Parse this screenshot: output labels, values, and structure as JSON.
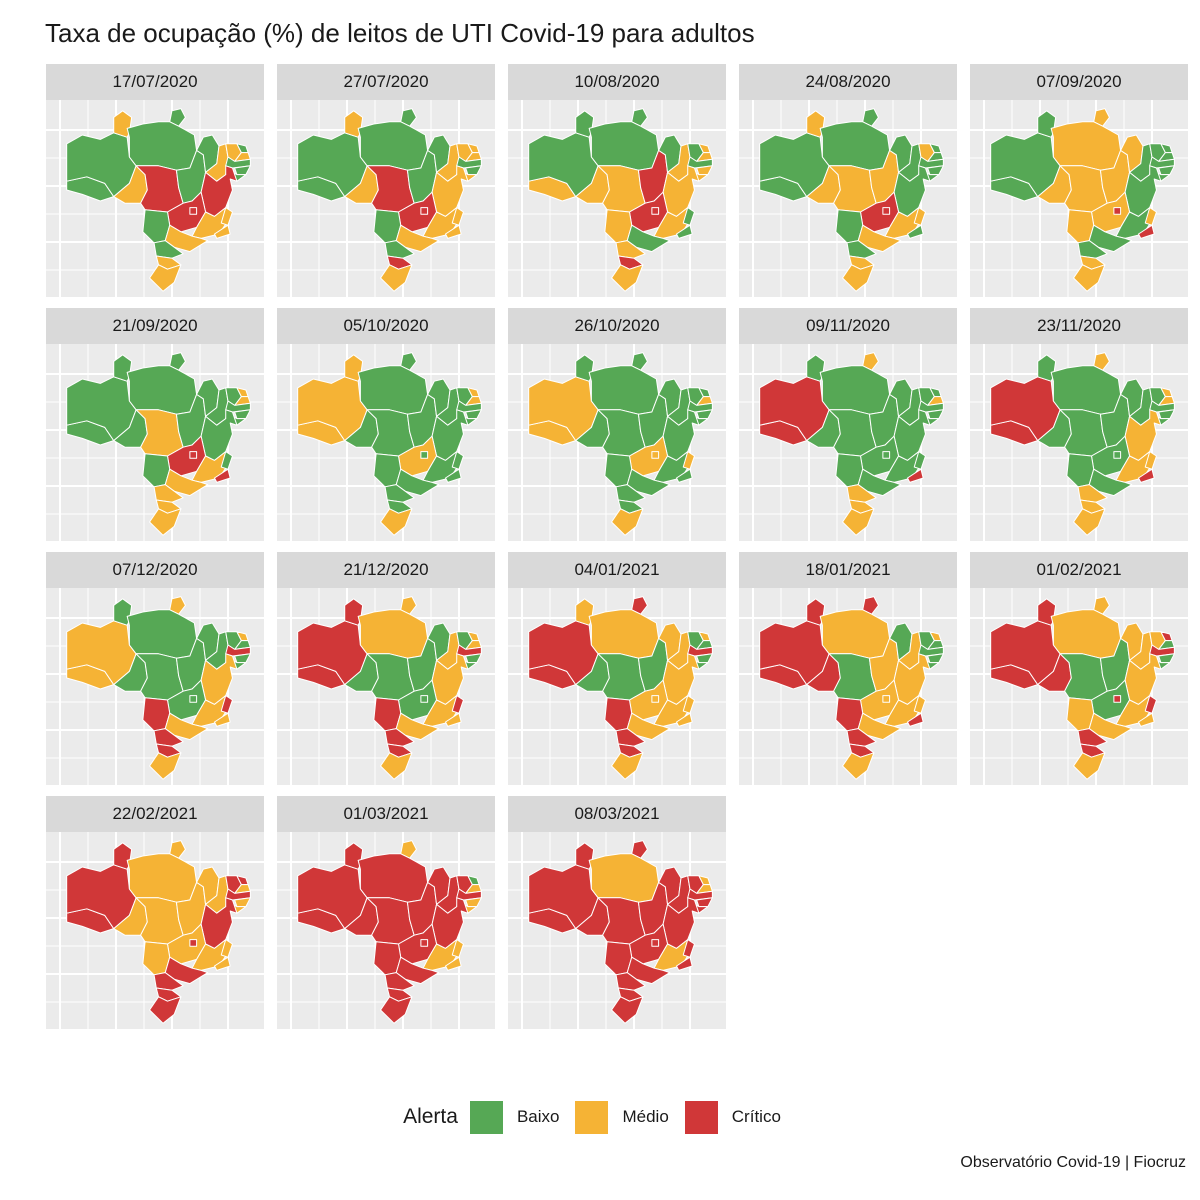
{
  "title": "Taxa de ocupação (%) de leitos de UTI Covid-19 para adultos",
  "caption": "Observatório Covid-19 | Fiocruz",
  "legend": {
    "title": "Alerta",
    "items": [
      {
        "key": "B",
        "label": "Baixo",
        "color": "#56a855"
      },
      {
        "key": "M",
        "label": "Médio",
        "color": "#f5b335"
      },
      {
        "key": "C",
        "label": "Crítico",
        "color": "#d03738"
      }
    ]
  },
  "state_order": [
    "AC",
    "AM",
    "RR",
    "AP",
    "PA",
    "RO",
    "MT",
    "TO",
    "MA",
    "PI",
    "CE",
    "RN",
    "PB",
    "PE",
    "AL",
    "SE",
    "BA",
    "GO",
    "DF",
    "MS",
    "MG",
    "ES",
    "RJ",
    "SP",
    "PR",
    "SC",
    "RS"
  ],
  "panels": [
    {
      "date": "17/07/2020",
      "alert": {
        "AC": "B",
        "AM": "B",
        "RR": "M",
        "AP": "B",
        "PA": "B",
        "RO": "M",
        "MT": "C",
        "TO": "B",
        "MA": "B",
        "PI": "M",
        "CE": "M",
        "RN": "B",
        "PB": "M",
        "PE": "B",
        "AL": "B",
        "SE": "B",
        "BA": "C",
        "GO": "C",
        "DF": "C",
        "MS": "B",
        "MG": "M",
        "ES": "M",
        "RJ": "M",
        "SP": "M",
        "PR": "B",
        "SC": "M",
        "RS": "M"
      }
    },
    {
      "date": "27/07/2020",
      "alert": {
        "AC": "B",
        "AM": "B",
        "RR": "M",
        "AP": "B",
        "PA": "B",
        "RO": "M",
        "MT": "C",
        "TO": "B",
        "MA": "B",
        "PI": "M",
        "CE": "M",
        "RN": "M",
        "PB": "M",
        "PE": "B",
        "AL": "B",
        "SE": "M",
        "BA": "M",
        "GO": "C",
        "DF": "C",
        "MS": "B",
        "MG": "M",
        "ES": "M",
        "RJ": "M",
        "SP": "M",
        "PR": "B",
        "SC": "C",
        "RS": "M"
      }
    },
    {
      "date": "10/08/2020",
      "alert": {
        "AC": "M",
        "AM": "B",
        "RR": "B",
        "AP": "B",
        "PA": "B",
        "RO": "M",
        "MT": "M",
        "TO": "C",
        "MA": "B",
        "PI": "M",
        "CE": "B",
        "RN": "M",
        "PB": "M",
        "PE": "B",
        "AL": "M",
        "SE": "M",
        "BA": "M",
        "GO": "C",
        "DF": "C",
        "MS": "M",
        "MG": "M",
        "ES": "B",
        "RJ": "B",
        "SP": "B",
        "PR": "M",
        "SC": "C",
        "RS": "M"
      }
    },
    {
      "date": "24/08/2020",
      "alert": {
        "AC": "B",
        "AM": "B",
        "RR": "M",
        "AP": "B",
        "PA": "B",
        "RO": "M",
        "MT": "M",
        "TO": "M",
        "MA": "B",
        "PI": "B",
        "CE": "M",
        "RN": "B",
        "PB": "B",
        "PE": "B",
        "AL": "B",
        "SE": "B",
        "BA": "B",
        "GO": "C",
        "DF": "C",
        "MS": "B",
        "MG": "M",
        "ES": "M",
        "RJ": "B",
        "SP": "M",
        "PR": "B",
        "SC": "M",
        "RS": "M"
      }
    },
    {
      "date": "07/09/2020",
      "alert": {
        "AC": "B",
        "AM": "B",
        "RR": "B",
        "AP": "M",
        "PA": "M",
        "RO": "M",
        "MT": "M",
        "TO": "M",
        "MA": "M",
        "PI": "B",
        "CE": "B",
        "RN": "B",
        "PB": "B",
        "PE": "B",
        "AL": "B",
        "SE": "B",
        "BA": "B",
        "GO": "M",
        "DF": "C",
        "MS": "M",
        "MG": "B",
        "ES": "M",
        "RJ": "C",
        "SP": "B",
        "PR": "B",
        "SC": "M",
        "RS": "M"
      }
    },
    {
      "date": "21/09/2020",
      "alert": {
        "AC": "B",
        "AM": "B",
        "RR": "B",
        "AP": "B",
        "PA": "B",
        "RO": "B",
        "MT": "M",
        "TO": "B",
        "MA": "B",
        "PI": "B",
        "CE": "B",
        "RN": "M",
        "PB": "M",
        "PE": "B",
        "AL": "B",
        "SE": "B",
        "BA": "B",
        "GO": "C",
        "DF": "C",
        "MS": "B",
        "MG": "M",
        "ES": "B",
        "RJ": "C",
        "SP": "M",
        "PR": "M",
        "SC": "M",
        "RS": "M"
      }
    },
    {
      "date": "05/10/2020",
      "alert": {
        "AC": "M",
        "AM": "M",
        "RR": "M",
        "AP": "B",
        "PA": "B",
        "RO": "B",
        "MT": "B",
        "TO": "B",
        "MA": "B",
        "PI": "B",
        "CE": "B",
        "RN": "M",
        "PB": "M",
        "PE": "B",
        "AL": "B",
        "SE": "B",
        "BA": "B",
        "GO": "M",
        "DF": "B",
        "MS": "B",
        "MG": "B",
        "ES": "B",
        "RJ": "B",
        "SP": "B",
        "PR": "B",
        "SC": "B",
        "RS": "M"
      }
    },
    {
      "date": "26/10/2020",
      "alert": {
        "AC": "M",
        "AM": "M",
        "RR": "B",
        "AP": "B",
        "PA": "B",
        "RO": "B",
        "MT": "B",
        "TO": "B",
        "MA": "B",
        "PI": "B",
        "CE": "B",
        "RN": "B",
        "PB": "M",
        "PE": "B",
        "AL": "B",
        "SE": "B",
        "BA": "B",
        "GO": "M",
        "DF": "M",
        "MS": "B",
        "MG": "B",
        "ES": "M",
        "RJ": "B",
        "SP": "B",
        "PR": "B",
        "SC": "B",
        "RS": "M"
      }
    },
    {
      "date": "09/11/2020",
      "alert": {
        "AC": "C",
        "AM": "C",
        "RR": "B",
        "AP": "M",
        "PA": "B",
        "RO": "B",
        "MT": "B",
        "TO": "B",
        "MA": "B",
        "PI": "B",
        "CE": "B",
        "RN": "B",
        "PB": "M",
        "PE": "B",
        "AL": "B",
        "SE": "B",
        "BA": "B",
        "GO": "B",
        "DF": "B",
        "MS": "B",
        "MG": "B",
        "ES": "B",
        "RJ": "C",
        "SP": "B",
        "PR": "M",
        "SC": "M",
        "RS": "M"
      }
    },
    {
      "date": "23/11/2020",
      "alert": {
        "AC": "C",
        "AM": "C",
        "RR": "B",
        "AP": "M",
        "PA": "B",
        "RO": "B",
        "MT": "B",
        "TO": "B",
        "MA": "B",
        "PI": "B",
        "CE": "B",
        "RN": "M",
        "PB": "M",
        "PE": "B",
        "AL": "B",
        "SE": "B",
        "BA": "M",
        "GO": "B",
        "DF": "B",
        "MS": "B",
        "MG": "M",
        "ES": "M",
        "RJ": "C",
        "SP": "B",
        "PR": "M",
        "SC": "M",
        "RS": "M"
      }
    },
    {
      "date": "07/12/2020",
      "alert": {
        "AC": "M",
        "AM": "M",
        "RR": "B",
        "AP": "M",
        "PA": "B",
        "RO": "B",
        "MT": "B",
        "TO": "B",
        "MA": "B",
        "PI": "B",
        "CE": "B",
        "RN": "M",
        "PB": "B",
        "PE": "C",
        "AL": "B",
        "SE": "B",
        "BA": "M",
        "GO": "B",
        "DF": "B",
        "MS": "C",
        "MG": "M",
        "ES": "C",
        "RJ": "M",
        "SP": "M",
        "PR": "C",
        "SC": "C",
        "RS": "M"
      }
    },
    {
      "date": "21/12/2020",
      "alert": {
        "AC": "C",
        "AM": "C",
        "RR": "C",
        "AP": "M",
        "PA": "M",
        "RO": "B",
        "MT": "B",
        "TO": "B",
        "MA": "B",
        "PI": "M",
        "CE": "B",
        "RN": "M",
        "PB": "M",
        "PE": "C",
        "AL": "B",
        "SE": "B",
        "BA": "M",
        "GO": "B",
        "DF": "B",
        "MS": "C",
        "MG": "M",
        "ES": "C",
        "RJ": "M",
        "SP": "M",
        "PR": "C",
        "SC": "C",
        "RS": "M"
      }
    },
    {
      "date": "04/01/2021",
      "alert": {
        "AC": "C",
        "AM": "C",
        "RR": "M",
        "AP": "C",
        "PA": "M",
        "RO": "B",
        "MT": "B",
        "TO": "B",
        "MA": "M",
        "PI": "M",
        "CE": "B",
        "RN": "M",
        "PB": "B",
        "PE": "C",
        "AL": "B",
        "SE": "B",
        "BA": "M",
        "GO": "M",
        "DF": "M",
        "MS": "C",
        "MG": "M",
        "ES": "M",
        "RJ": "M",
        "SP": "M",
        "PR": "C",
        "SC": "C",
        "RS": "M"
      }
    },
    {
      "date": "18/01/2021",
      "alert": {
        "AC": "C",
        "AM": "C",
        "RR": "C",
        "AP": "C",
        "PA": "M",
        "RO": "C",
        "MT": "B",
        "TO": "M",
        "MA": "B",
        "PI": "M",
        "CE": "B",
        "RN": "M",
        "PB": "B",
        "PE": "B",
        "AL": "B",
        "SE": "B",
        "BA": "M",
        "GO": "M",
        "DF": "M",
        "MS": "C",
        "MG": "M",
        "ES": "M",
        "RJ": "C",
        "SP": "M",
        "PR": "C",
        "SC": "C",
        "RS": "M"
      }
    },
    {
      "date": "01/02/2021",
      "alert": {
        "AC": "C",
        "AM": "C",
        "RR": "C",
        "AP": "M",
        "PA": "M",
        "RO": "C",
        "MT": "B",
        "TO": "B",
        "MA": "M",
        "PI": "M",
        "CE": "M",
        "RN": "C",
        "PB": "B",
        "PE": "C",
        "AL": "B",
        "SE": "B",
        "BA": "M",
        "GO": "B",
        "DF": "C",
        "MS": "M",
        "MG": "M",
        "ES": "C",
        "RJ": "M",
        "SP": "M",
        "PR": "C",
        "SC": "C",
        "RS": "M"
      }
    },
    {
      "date": "22/02/2021",
      "alert": {
        "AC": "C",
        "AM": "C",
        "RR": "C",
        "AP": "M",
        "PA": "M",
        "RO": "M",
        "MT": "M",
        "TO": "M",
        "MA": "M",
        "PI": "M",
        "CE": "C",
        "RN": "C",
        "PB": "M",
        "PE": "C",
        "AL": "M",
        "SE": "M",
        "BA": "C",
        "GO": "M",
        "DF": "C",
        "MS": "M",
        "MG": "M",
        "ES": "M",
        "RJ": "M",
        "SP": "C",
        "PR": "C",
        "SC": "C",
        "RS": "C"
      }
    },
    {
      "date": "01/03/2021",
      "alert": {
        "AC": "C",
        "AM": "C",
        "RR": "C",
        "AP": "M",
        "PA": "C",
        "RO": "C",
        "MT": "C",
        "TO": "C",
        "MA": "C",
        "PI": "C",
        "CE": "C",
        "RN": "B",
        "PB": "M",
        "PE": "C",
        "AL": "M",
        "SE": "M",
        "BA": "C",
        "GO": "C",
        "DF": "C",
        "MS": "C",
        "MG": "M",
        "ES": "M",
        "RJ": "M",
        "SP": "C",
        "PR": "C",
        "SC": "C",
        "RS": "C"
      }
    },
    {
      "date": "08/03/2021",
      "alert": {
        "AC": "C",
        "AM": "C",
        "RR": "C",
        "AP": "C",
        "PA": "M",
        "RO": "C",
        "MT": "C",
        "TO": "C",
        "MA": "C",
        "PI": "C",
        "CE": "C",
        "RN": "M",
        "PB": "M",
        "PE": "C",
        "AL": "C",
        "SE": "C",
        "BA": "C",
        "GO": "C",
        "DF": "C",
        "MS": "C",
        "MG": "M",
        "ES": "C",
        "RJ": "C",
        "SP": "C",
        "PR": "C",
        "SC": "C",
        "RS": "C"
      }
    }
  ]
}
